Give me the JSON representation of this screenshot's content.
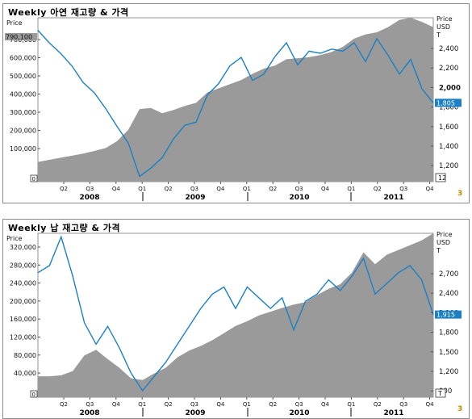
{
  "charts": [
    {
      "title": "Weekly 아연 재고량 & 가격",
      "left_axis_label": "Price",
      "right_axis_labels": [
        "Price",
        "USD",
        "T"
      ],
      "left_ticks": [
        "700,000",
        "600,000",
        "500,000",
        "400,000",
        "300,000",
        "200,000",
        "100,000"
      ],
      "left_top_marker": "790,100",
      "right_ticks": [
        "2,400",
        "2,200",
        "2,000",
        "1,800",
        "1,600",
        "1,400",
        "1,200"
      ],
      "right_bold_tick": "2,000",
      "last_value_badge": "1,805",
      "bottom_right_marker": "12",
      "bottom_left_marker": "0",
      "quarters": [
        "Q2",
        "Q3",
        "Q4",
        "Q1",
        "Q2",
        "Q3",
        "Q4",
        "Q1",
        "Q2",
        "Q3",
        "Q4",
        "Q1",
        "Q2",
        "Q3",
        "Q4"
      ],
      "years": [
        "2008",
        "2009",
        "2010",
        "2011"
      ],
      "source_mark": "3",
      "inventory_range": [
        0,
        790000
      ],
      "price_range": [
        1050,
        2620
      ],
      "inventory": [
        95000,
        105000,
        115000,
        125000,
        135000,
        148000,
        162000,
        195000,
        250000,
        350000,
        355000,
        330000,
        345000,
        365000,
        380000,
        430000,
        450000,
        470000,
        490000,
        520000,
        545000,
        560000,
        590000,
        595000,
        600000,
        610000,
        625000,
        650000,
        690000,
        710000,
        720000,
        745000,
        780000,
        790000,
        770000,
        745000
      ],
      "price": [
        2500,
        2380,
        2280,
        2160,
        2000,
        1900,
        1750,
        1580,
        1420,
        1100,
        1180,
        1280,
        1460,
        1590,
        1620,
        1880,
        1990,
        2160,
        2240,
        2020,
        2080,
        2250,
        2380,
        2170,
        2300,
        2280,
        2320,
        2300,
        2380,
        2200,
        2420,
        2260,
        2080,
        2220,
        1940,
        1805
      ]
    },
    {
      "title": "Weekly 납 재고량 & 가격",
      "left_axis_label": "Price",
      "right_axis_labels": [
        "Price",
        "USD",
        "T"
      ],
      "left_ticks": [
        "320,000",
        "280,000",
        "240,000",
        "200,000",
        "160,000",
        "120,000",
        "80,000",
        "40,000"
      ],
      "right_ticks": [
        "2,700",
        "2,400",
        "2,100",
        "1,800",
        "1,500",
        "1,200",
        "900"
      ],
      "last_value_badge": "1,915",
      "bottom_right_marker": "T",
      "bottom_left_marker": "0",
      "quarters": [
        "Q2",
        "Q3",
        "Q4",
        "Q1",
        "Q2",
        "Q3",
        "Q4",
        "Q1",
        "Q2",
        "Q3",
        "Q4",
        "Q1",
        "Q2",
        "Q3",
        "Q4"
      ],
      "years": [
        "2008",
        "2009",
        "2010",
        "2011"
      ],
      "source_mark": "3",
      "inventory_range": [
        0,
        345000
      ],
      "price_range": [
        760,
        3050
      ],
      "inventory": [
        44000,
        44000,
        46000,
        55000,
        88000,
        100000,
        80000,
        62000,
        40000,
        36000,
        50000,
        62000,
        84000,
        98000,
        108000,
        120000,
        135000,
        150000,
        160000,
        172000,
        180000,
        188000,
        195000,
        200000,
        215000,
        228000,
        238000,
        262000,
        305000,
        280000,
        300000,
        310000,
        320000,
        330000,
        345000
      ],
      "price": [
        2500,
        2600,
        3000,
        2450,
        1800,
        1500,
        1750,
        1450,
        1100,
        850,
        1050,
        1250,
        1500,
        1750,
        2000,
        2200,
        2300,
        2000,
        2300,
        2150,
        2000,
        2150,
        1700,
        2100,
        2200,
        2400,
        2250,
        2450,
        2700,
        2200,
        2350,
        2500,
        2600,
        2400,
        1915
      ]
    }
  ]
}
